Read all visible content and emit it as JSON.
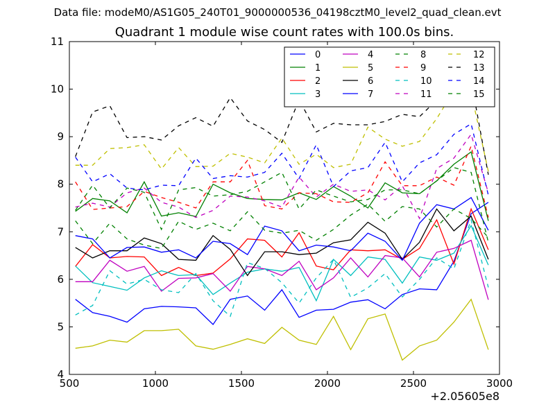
{
  "suptitle": "Data file: modeM0/AS1G05_240T01_9000000536_04198cztM0_level2_quad_clean.evt",
  "chart_data": {
    "type": "line",
    "title": "Quadrant 1 module wise count rates with 100.0s bins.",
    "xlabel": "",
    "ylabel": "",
    "x_offset_label": "+2.05605e8",
    "xlim": [
      500,
      3000
    ],
    "ylim": [
      4,
      11
    ],
    "xticks": [
      500,
      1000,
      1500,
      2000,
      2500,
      3000
    ],
    "yticks": [
      4,
      5,
      6,
      7,
      8,
      9,
      10,
      11
    ],
    "grid": false,
    "legend_placement": "top-right",
    "legend_columns": 4,
    "x": [
      535,
      635,
      735,
      835,
      935,
      1035,
      1135,
      1235,
      1335,
      1435,
      1535,
      1635,
      1735,
      1835,
      1935,
      2035,
      2135,
      2235,
      2335,
      2435,
      2535,
      2635,
      2735,
      2835,
      2935
    ],
    "series": [
      {
        "name": "0",
        "color": "#0000ff",
        "dash": "solid",
        "values": [
          5.58,
          5.3,
          5.22,
          5.1,
          5.38,
          5.43,
          5.42,
          5.4,
          5.05,
          5.58,
          5.65,
          5.35,
          5.78,
          5.2,
          5.35,
          5.37,
          5.52,
          5.57,
          5.38,
          5.68,
          5.8,
          5.78,
          6.38,
          7.38,
          7.62
        ]
      },
      {
        "name": "1",
        "color": "#008000",
        "dash": "solid",
        "values": [
          7.43,
          7.7,
          7.65,
          7.4,
          8.05,
          7.33,
          7.4,
          7.32,
          8.0,
          7.82,
          7.7,
          7.68,
          7.67,
          7.82,
          7.68,
          7.95,
          7.75,
          7.5,
          8.03,
          7.82,
          7.8,
          8.07,
          8.42,
          8.68,
          7.23
        ]
      },
      {
        "name": "2",
        "color": "#ff0000",
        "dash": "solid",
        "values": [
          6.27,
          6.73,
          6.45,
          6.48,
          6.47,
          6.08,
          6.25,
          6.08,
          6.13,
          6.43,
          6.85,
          6.82,
          6.47,
          6.98,
          6.28,
          6.2,
          6.62,
          6.6,
          6.62,
          6.42,
          6.65,
          7.25,
          6.32,
          7.48,
          6.62
        ]
      },
      {
        "name": "3",
        "color": "#00bfbf",
        "dash": "solid",
        "values": [
          6.28,
          5.93,
          5.85,
          5.77,
          6.03,
          6.18,
          6.08,
          6.1,
          5.68,
          5.92,
          6.15,
          6.22,
          6.17,
          6.25,
          5.55,
          6.42,
          6.08,
          6.47,
          6.42,
          5.92,
          6.47,
          6.4,
          6.55,
          7.13,
          6.3
        ]
      },
      {
        "name": "4",
        "color": "#bf00bf",
        "dash": "solid",
        "values": [
          5.95,
          5.95,
          6.4,
          6.17,
          6.27,
          5.75,
          6.02,
          6.03,
          6.12,
          5.75,
          6.27,
          6.22,
          6.08,
          6.38,
          5.78,
          6.03,
          6.45,
          6.05,
          6.5,
          6.45,
          6.05,
          6.57,
          6.65,
          6.82,
          5.57
        ]
      },
      {
        "name": "5",
        "color": "#bfbf00",
        "dash": "solid",
        "values": [
          4.55,
          4.6,
          4.72,
          4.68,
          4.92,
          4.92,
          4.95,
          4.6,
          4.53,
          4.63,
          4.75,
          4.65,
          4.99,
          4.72,
          4.63,
          5.22,
          4.52,
          5.17,
          5.27,
          4.3,
          4.6,
          4.72,
          5.1,
          5.58,
          4.52
        ]
      },
      {
        "name": "6",
        "color": "#000000",
        "dash": "solid",
        "values": [
          6.67,
          6.45,
          6.6,
          6.6,
          6.87,
          6.75,
          6.42,
          6.4,
          6.92,
          6.63,
          6.08,
          6.58,
          6.58,
          6.52,
          6.55,
          6.77,
          6.83,
          7.2,
          6.97,
          6.42,
          6.78,
          7.48,
          7.02,
          7.33,
          6.42
        ]
      },
      {
        "name": "7",
        "color": "#0000ff",
        "dash": "solid",
        "values": [
          6.92,
          6.85,
          6.45,
          6.67,
          6.68,
          6.57,
          6.62,
          6.45,
          6.8,
          6.75,
          6.52,
          7.12,
          7.02,
          6.6,
          6.72,
          6.68,
          6.6,
          6.97,
          6.8,
          6.4,
          7.18,
          7.57,
          7.48,
          7.72,
          7.03
        ]
      },
      {
        "name": "8",
        "color": "#008000",
        "dash": "dashed",
        "values": [
          7.23,
          6.75,
          7.18,
          6.85,
          6.72,
          6.65,
          7.22,
          7.05,
          7.18,
          7.02,
          7.42,
          7.03,
          6.97,
          7.03,
          6.82,
          7.05,
          7.35,
          7.58,
          7.22,
          7.53,
          7.48,
          7.1,
          7.48,
          7.28,
          6.88
        ]
      },
      {
        "name": "9",
        "color": "#ff0000",
        "dash": "dashed",
        "values": [
          8.05,
          7.47,
          7.5,
          7.53,
          7.85,
          7.72,
          7.62,
          7.5,
          8.05,
          8.05,
          8.5,
          7.55,
          7.48,
          7.82,
          7.8,
          7.63,
          7.62,
          7.82,
          8.47,
          7.97,
          7.97,
          8.15,
          7.98,
          8.8,
          7.3
        ]
      },
      {
        "name": "10",
        "color": "#00bfbf",
        "dash": "dashed",
        "values": [
          5.25,
          5.45,
          6.18,
          5.9,
          6.0,
          5.78,
          5.72,
          6.12,
          5.55,
          5.22,
          6.35,
          6.23,
          5.93,
          5.5,
          6.03,
          6.42,
          5.62,
          5.82,
          6.12,
          5.63,
          6.0,
          6.45,
          6.22,
          7.25,
          5.83
        ]
      },
      {
        "name": "11",
        "color": "#bf00bf",
        "dash": "dashed",
        "values": [
          7.52,
          7.6,
          7.52,
          7.82,
          7.92,
          7.62,
          7.52,
          7.3,
          7.45,
          7.75,
          7.73,
          7.65,
          7.52,
          8.15,
          7.73,
          8.0,
          7.85,
          7.88,
          7.67,
          7.97,
          7.28,
          8.33,
          8.55,
          9.05,
          7.82
        ]
      },
      {
        "name": "12",
        "color": "#bfbf00",
        "dash": "dashed",
        "values": [
          8.4,
          8.4,
          8.75,
          8.77,
          8.83,
          8.32,
          8.77,
          8.37,
          8.38,
          8.65,
          8.57,
          8.45,
          8.97,
          8.42,
          8.63,
          8.35,
          8.42,
          9.2,
          8.95,
          8.8,
          8.9,
          9.38,
          9.97,
          9.93,
          8.27
        ]
      },
      {
        "name": "13",
        "color": "#000000",
        "dash": "dashed",
        "values": [
          8.58,
          9.52,
          9.65,
          8.98,
          9.0,
          8.93,
          9.23,
          9.4,
          9.22,
          9.82,
          9.33,
          9.15,
          8.88,
          9.78,
          9.1,
          9.28,
          9.25,
          9.25,
          9.32,
          9.47,
          9.42,
          9.77,
          10.33,
          10.18,
          8.2
        ]
      },
      {
        "name": "14",
        "color": "#0000ff",
        "dash": "dashed",
        "values": [
          8.57,
          8.05,
          8.22,
          7.92,
          7.88,
          7.98,
          7.97,
          8.55,
          8.12,
          8.18,
          8.15,
          8.25,
          8.65,
          8.12,
          8.83,
          7.95,
          8.28,
          8.35,
          8.88,
          8.05,
          8.45,
          8.62,
          9.05,
          9.27,
          7.77
        ]
      },
      {
        "name": "15",
        "color": "#008000",
        "dash": "dashed",
        "values": [
          7.45,
          7.98,
          7.5,
          7.92,
          7.83,
          7.05,
          7.88,
          7.93,
          7.75,
          7.78,
          7.85,
          8.05,
          8.25,
          7.48,
          7.88,
          7.75,
          7.63,
          7.68,
          7.88,
          7.88,
          7.8,
          8.07,
          8.35,
          8.25,
          6.78
        ]
      }
    ]
  }
}
